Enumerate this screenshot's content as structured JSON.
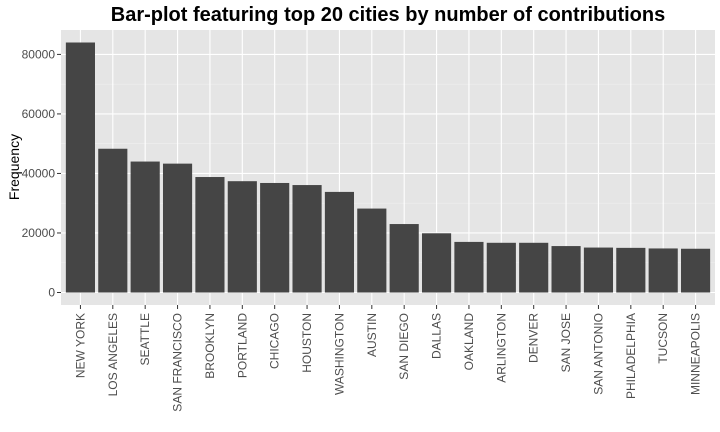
{
  "chart_data": {
    "type": "bar",
    "title": "Bar-plot featuring top 20 cities by number of contributions",
    "xlabel": "",
    "ylabel": "Frequency",
    "categories": [
      "NEW YORK",
      "LOS ANGELES",
      "SEATTLE",
      "SAN FRANCISCO",
      "BROOKLYN",
      "PORTLAND",
      "CHICAGO",
      "HOUSTON",
      "WASHINGTON",
      "AUSTIN",
      "SAN DIEGO",
      "DALLAS",
      "OAKLAND",
      "ARLINGTON",
      "DENVER",
      "SAN JOSE",
      "SAN ANTONIO",
      "PHILADELPHIA",
      "TUCSON",
      "MINNEAPOLIS"
    ],
    "values": [
      84000,
      48300,
      44000,
      43300,
      38800,
      37400,
      36800,
      36100,
      33800,
      28200,
      23000,
      19900,
      17000,
      16700,
      16700,
      15600,
      15100,
      15000,
      14800,
      14700
    ],
    "yticks": [
      0,
      20000,
      40000,
      60000,
      80000
    ],
    "ylim": [
      -4200,
      88200
    ],
    "grid": true,
    "colors": {
      "panel": "#e5e5e5",
      "bar": "#454545",
      "grid_major": "#ffffff",
      "grid_minor": "#f0f0f0"
    }
  }
}
